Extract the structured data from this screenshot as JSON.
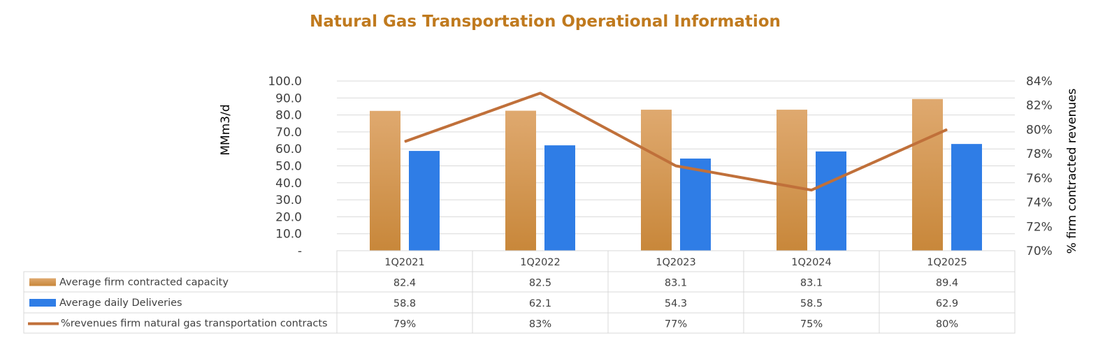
{
  "chart_data": {
    "type": "bar",
    "title": "Natural Gas Transportation Operational Information",
    "categories": [
      "1Q2021",
      "1Q2022",
      "1Q2023",
      "1Q2024",
      "1Q2025"
    ],
    "y_left": {
      "label": "MMm3/d",
      "range": [
        0,
        100
      ],
      "ticks": [
        "-",
        "10.0",
        "20.0",
        "30.0",
        "40.0",
        "50.0",
        "60.0",
        "70.0",
        "80.0",
        "90.0",
        "100.0"
      ]
    },
    "y_right": {
      "label": "% firm contracted revenues",
      "range": [
        70,
        84
      ],
      "ticks": [
        "70%",
        "72%",
        "74%",
        "76%",
        "78%",
        "80%",
        "82%",
        "84%"
      ]
    },
    "grid": true,
    "legend_placement": "data-table",
    "series": [
      {
        "name": "Average firm contracted capacity",
        "kind": "bar",
        "axis": "left",
        "color": "#D9914A",
        "values": [
          82.4,
          82.5,
          83.1,
          83.1,
          89.4
        ],
        "labels": [
          "82.4",
          "82.5",
          "83.1",
          "83.1",
          "89.4"
        ]
      },
      {
        "name": "Average daily Deliveries",
        "kind": "bar",
        "axis": "left",
        "color": "#2F7DE6",
        "values": [
          58.8,
          62.1,
          54.3,
          58.5,
          62.9
        ],
        "labels": [
          "58.8",
          "62.1",
          "54.3",
          "58.5",
          "62.9"
        ]
      },
      {
        "name": "%revenues firm natural gas transportation contracts",
        "kind": "line",
        "axis": "right",
        "color": "#C0703A",
        "values": [
          79,
          83,
          77,
          75,
          80
        ],
        "labels": [
          "79%",
          "83%",
          "77%",
          "75%",
          "80%"
        ]
      }
    ]
  }
}
